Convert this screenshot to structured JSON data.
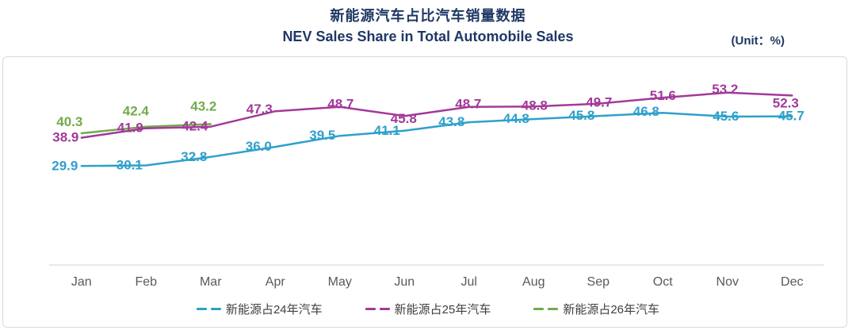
{
  "header": {
    "title_zh": "新能源汽车占比汽车销量数据",
    "title_en": "NEV Sales Share in Total Automobile Sales",
    "unit_label": "(Unit：%)"
  },
  "chart_data": {
    "type": "line",
    "categories": [
      "Jan",
      "Feb",
      "Mar",
      "Apr",
      "May",
      "Jun",
      "Jul",
      "Aug",
      "Sep",
      "Oct",
      "Nov",
      "Dec"
    ],
    "series": [
      {
        "name": "新能源占24年汽车",
        "color": "#2fa0cb",
        "values": [
          29.9,
          30.1,
          32.8,
          36.0,
          39.5,
          41.1,
          43.8,
          44.8,
          45.8,
          46.8,
          45.6,
          45.7
        ]
      },
      {
        "name": "新能源占25年汽车",
        "color": "#a23a99",
        "values": [
          38.9,
          41.9,
          42.4,
          47.3,
          48.7,
          45.8,
          48.7,
          48.8,
          49.7,
          51.6,
          53.2,
          52.3
        ]
      },
      {
        "name": "新能源占26年汽车",
        "color": "#73aa4b",
        "values": [
          40.3,
          42.4,
          43.2
        ]
      }
    ],
    "title": "新能源汽车占比汽车销量数据 — NEV Sales Share in Total Automobile Sales",
    "xlabel": "",
    "ylabel": "",
    "unit": "%",
    "ylim": [
      0,
      60
    ],
    "y_axis_visible": false,
    "grid": false,
    "data_labels": true,
    "legend_position": "bottom"
  },
  "colors": {
    "title": "#1f3864",
    "panel_border": "#d9d9d9",
    "axis_line": "#d9d9d9",
    "month_label": "#595959",
    "legend_text": "#3f3f3f",
    "background": "#ffffff"
  }
}
